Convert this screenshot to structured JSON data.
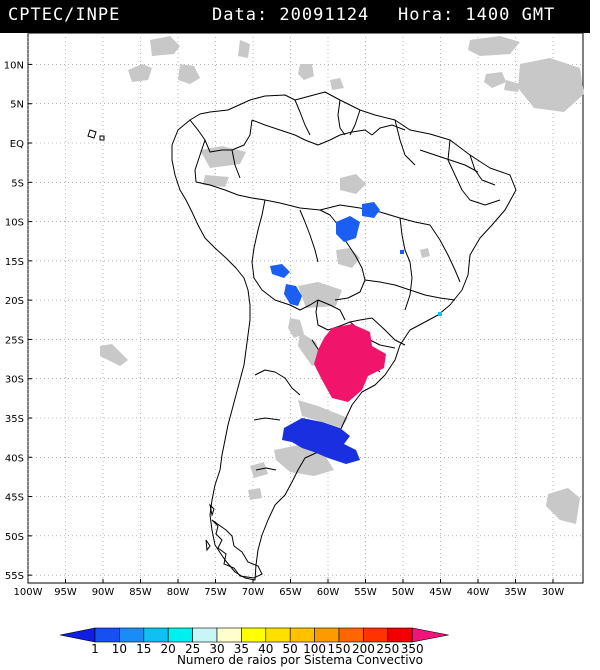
{
  "header": {
    "source": "CPTEC/INPE",
    "data_text": "Data: 20091124",
    "hora_text": "Hora: 1400 GMT"
  },
  "map": {
    "lat_range": [
      -56,
      14
    ],
    "lon_range": [
      -100,
      -26
    ],
    "lat_ticks": [
      "10N",
      "5N",
      "EQ",
      "5S",
      "10S",
      "15S",
      "20S",
      "25S",
      "30S",
      "35S",
      "40S",
      "45S",
      "50S",
      "55S"
    ],
    "lon_ticks": [
      "100W",
      "95W",
      "90W",
      "85W",
      "80W",
      "75W",
      "70W",
      "65W",
      "60W",
      "55W",
      "50W",
      "45W",
      "40W",
      "35W",
      "30W"
    ],
    "colors": {
      "cloud": "#c8c8c8",
      "border": "#000000",
      "grid": "#888888",
      "red_system": "#f0146a",
      "blue_system": "#1a2fe0",
      "mid_blue_system": "#1b5ef2"
    }
  },
  "legend": {
    "labels": [
      "1",
      "10",
      "15",
      "20",
      "25",
      "30",
      "35",
      "40",
      "50",
      "100",
      "150",
      "200",
      "250",
      "350"
    ],
    "colors": [
      "#0f1ee0",
      "#1750f0",
      "#1a8cf5",
      "#10c0f2",
      "#00f0f0",
      "#c8f5f5",
      "#ffffcc",
      "#ffff00",
      "#ffe000",
      "#ffc000",
      "#ff9900",
      "#ff6600",
      "#ff3300",
      "#f00000",
      "#f0147a"
    ],
    "caption": "Numero de raios por Sistema Convectivo"
  }
}
